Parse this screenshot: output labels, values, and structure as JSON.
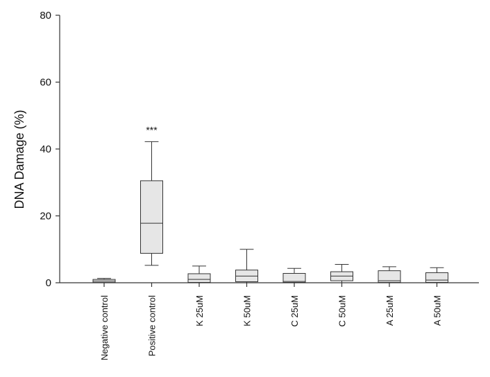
{
  "chart_data": {
    "type": "box",
    "title": "",
    "xlabel": "",
    "ylabel": "DNA Damage (%)",
    "ylim": [
      0,
      80
    ],
    "yticks": [
      0,
      20,
      40,
      60,
      80
    ],
    "grid": false,
    "box_fill": "#e6e6e6",
    "line_color": "#333333",
    "categories": [
      "Negative control",
      "Positive control",
      "K  25uM",
      "K  50uM",
      "C  25uM",
      "C  50uM",
      "A  25uM",
      "A  50uM"
    ],
    "boxes": [
      {
        "whisker_low": 0.0,
        "q1": 0.1,
        "median": 0.5,
        "q3": 1.0,
        "whisker_high": 1.3,
        "annotation": ""
      },
      {
        "whisker_low": 5.2,
        "q1": 8.8,
        "median": 17.8,
        "q3": 30.5,
        "whisker_high": 42.2,
        "annotation": "***"
      },
      {
        "whisker_low": 0.0,
        "q1": 0.1,
        "median": 1.0,
        "q3": 2.7,
        "whisker_high": 5.0,
        "annotation": ""
      },
      {
        "whisker_low": 0.0,
        "q1": 0.3,
        "median": 2.0,
        "q3": 3.8,
        "whisker_high": 10.0,
        "annotation": ""
      },
      {
        "whisker_low": 0.0,
        "q1": 0.1,
        "median": 0.4,
        "q3": 2.8,
        "whisker_high": 4.3,
        "annotation": ""
      },
      {
        "whisker_low": 0.0,
        "q1": 0.6,
        "median": 2.0,
        "q3": 3.3,
        "whisker_high": 5.5,
        "annotation": ""
      },
      {
        "whisker_low": 0.0,
        "q1": 0.1,
        "median": 0.6,
        "q3": 3.6,
        "whisker_high": 4.8,
        "annotation": ""
      },
      {
        "whisker_low": 0.0,
        "q1": 0.1,
        "median": 0.8,
        "q3": 3.0,
        "whisker_high": 4.5,
        "annotation": ""
      }
    ]
  }
}
